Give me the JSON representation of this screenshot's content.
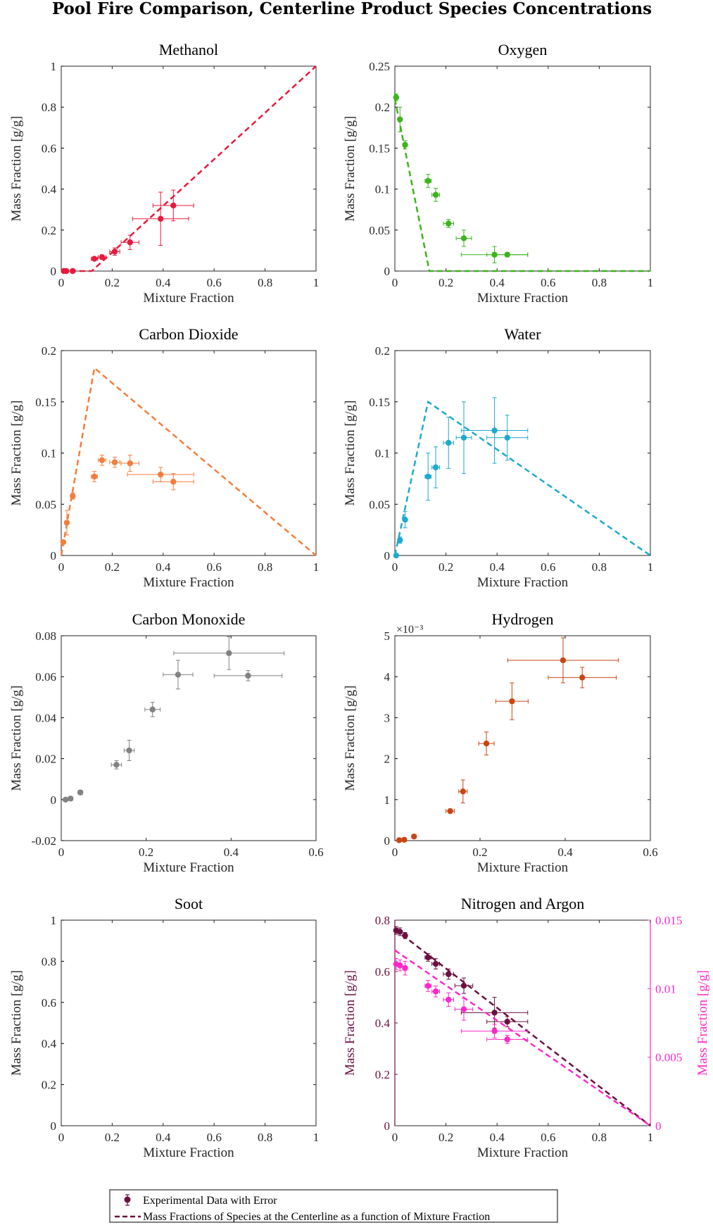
{
  "figure": {
    "title": "Pool Fire Comparison, Centerline Product Species Concentrations"
  },
  "legend": {
    "items": [
      {
        "label": "Experimental Data with Error",
        "kind": "errorbar-marker",
        "color": "#6b1040"
      },
      {
        "label": "Mass Fractions of Species at the Centerline as a function of Mixture Fraction",
        "kind": "dashed-line",
        "color": "#6b1040"
      }
    ]
  },
  "chart_data": [
    {
      "type": "scatter",
      "title": "Methanol",
      "xlabel": "Mixture Fraction",
      "ylabel": "Mass Fraction [g/g]",
      "xlim": [
        0,
        1
      ],
      "ylim": [
        0,
        1
      ],
      "xticks": [
        0,
        0.2,
        0.4,
        0.6,
        0.8,
        1
      ],
      "xtick_labels": [
        "0",
        "0.2",
        "0.4",
        "0.6",
        "0.8",
        "1"
      ],
      "yticks": [
        0,
        0.2,
        0.4,
        0.6,
        0.8,
        1
      ],
      "ytick_labels": [
        "0",
        "0.2",
        "0.4",
        "0.6",
        "0.8",
        "1"
      ],
      "color": "#e8193c",
      "points": [
        {
          "x": 0.01,
          "y": 0.0,
          "xerr": 0.005,
          "yerr": 0.003
        },
        {
          "x": 0.02,
          "y": 0.0,
          "xerr": 0.005,
          "yerr": 0.003
        },
        {
          "x": 0.045,
          "y": 0.0,
          "xerr": 0.008,
          "yerr": 0.003
        },
        {
          "x": 0.13,
          "y": 0.06,
          "xerr": 0.012,
          "yerr": 0.008
        },
        {
          "x": 0.16,
          "y": 0.068,
          "xerr": 0.015,
          "yerr": 0.01
        },
        {
          "x": 0.21,
          "y": 0.095,
          "xerr": 0.02,
          "yerr": 0.018
        },
        {
          "x": 0.27,
          "y": 0.14,
          "xerr": 0.035,
          "yerr": 0.035
        },
        {
          "x": 0.39,
          "y": 0.255,
          "xerr": 0.11,
          "yerr": 0.13
        },
        {
          "x": 0.44,
          "y": 0.32,
          "xerr": 0.08,
          "yerr": 0.075
        }
      ],
      "line": {
        "x": [
          0,
          0.12,
          1
        ],
        "y": [
          0,
          0,
          1
        ]
      }
    },
    {
      "type": "scatter",
      "title": "Oxygen",
      "xlabel": "Mixture Fraction",
      "ylabel": "Mass Fraction [g/g]",
      "xlim": [
        0,
        1
      ],
      "ylim": [
        0,
        0.25
      ],
      "xticks": [
        0,
        0.2,
        0.4,
        0.6,
        0.8,
        1
      ],
      "xtick_labels": [
        "0",
        "0.2",
        "0.4",
        "0.6",
        "0.8",
        "1"
      ],
      "yticks": [
        0,
        0.05,
        0.1,
        0.15,
        0.2,
        0.25
      ],
      "ytick_labels": [
        "0",
        "0.05",
        "0.1",
        "0.15",
        "0.2",
        "0.25"
      ],
      "color": "#3cb41e",
      "points": [
        {
          "x": 0.005,
          "y": 0.212,
          "xerr": 0.003,
          "yerr": 0.004
        },
        {
          "x": 0.02,
          "y": 0.185,
          "xerr": 0.006,
          "yerr": 0.015
        },
        {
          "x": 0.04,
          "y": 0.154,
          "xerr": 0.008,
          "yerr": 0.005
        },
        {
          "x": 0.13,
          "y": 0.11,
          "xerr": 0.012,
          "yerr": 0.008
        },
        {
          "x": 0.16,
          "y": 0.093,
          "xerr": 0.015,
          "yerr": 0.008
        },
        {
          "x": 0.21,
          "y": 0.058,
          "xerr": 0.02,
          "yerr": 0.005
        },
        {
          "x": 0.27,
          "y": 0.04,
          "xerr": 0.03,
          "yerr": 0.01
        },
        {
          "x": 0.39,
          "y": 0.02,
          "xerr": 0.13,
          "yerr": 0.01
        },
        {
          "x": 0.44,
          "y": 0.02,
          "xerr": 0.08,
          "yerr": 0.002
        }
      ],
      "line": {
        "x": [
          0,
          0.135,
          1
        ],
        "y": [
          0.21,
          0,
          0
        ]
      }
    },
    {
      "type": "scatter",
      "title": "Carbon Dioxide",
      "xlabel": "Mixture Fraction",
      "ylabel": "Mass Fraction [g/g]",
      "xlim": [
        0,
        1
      ],
      "ylim": [
        0,
        0.2
      ],
      "xticks": [
        0,
        0.2,
        0.4,
        0.6,
        0.8,
        1
      ],
      "xtick_labels": [
        "0",
        "0.2",
        "0.4",
        "0.6",
        "0.8",
        "1"
      ],
      "yticks": [
        0,
        0.05,
        0.1,
        0.15,
        0.2
      ],
      "ytick_labels": [
        "0",
        "0.05",
        "0.1",
        "0.15",
        "0.2"
      ],
      "color": "#f57d3c",
      "points": [
        {
          "x": 0.008,
          "y": 0.013,
          "xerr": 0.003,
          "yerr": 0.002
        },
        {
          "x": 0.022,
          "y": 0.032,
          "xerr": 0.006,
          "yerr": 0.012
        },
        {
          "x": 0.045,
          "y": 0.058,
          "xerr": 0.008,
          "yerr": 0.003
        },
        {
          "x": 0.13,
          "y": 0.077,
          "xerr": 0.012,
          "yerr": 0.005
        },
        {
          "x": 0.16,
          "y": 0.093,
          "xerr": 0.015,
          "yerr": 0.005
        },
        {
          "x": 0.21,
          "y": 0.091,
          "xerr": 0.02,
          "yerr": 0.005
        },
        {
          "x": 0.27,
          "y": 0.09,
          "xerr": 0.035,
          "yerr": 0.008
        },
        {
          "x": 0.39,
          "y": 0.079,
          "xerr": 0.13,
          "yerr": 0.007
        },
        {
          "x": 0.44,
          "y": 0.072,
          "xerr": 0.08,
          "yerr": 0.008
        }
      ],
      "line": {
        "x": [
          0,
          0.13,
          1
        ],
        "y": [
          0,
          0.183,
          0
        ]
      }
    },
    {
      "type": "scatter",
      "title": "Water",
      "xlabel": "Mixture Fraction",
      "ylabel": "Mass Fraction [g/g]",
      "xlim": [
        0,
        1
      ],
      "ylim": [
        0,
        0.2
      ],
      "xticks": [
        0,
        0.2,
        0.4,
        0.6,
        0.8,
        1
      ],
      "xtick_labels": [
        "0",
        "0.2",
        "0.4",
        "0.6",
        "0.8",
        "1"
      ],
      "yticks": [
        0,
        0.05,
        0.1,
        0.15,
        0.2
      ],
      "ytick_labels": [
        "0",
        "0.05",
        "0.1",
        "0.15",
        "0.2"
      ],
      "color": "#1eaacd",
      "points": [
        {
          "x": 0.005,
          "y": 0.0,
          "xerr": 0.002,
          "yerr": 0.001
        },
        {
          "x": 0.02,
          "y": 0.015,
          "xerr": 0.005,
          "yerr": 0.003
        },
        {
          "x": 0.04,
          "y": 0.035,
          "xerr": 0.007,
          "yerr": 0.008
        },
        {
          "x": 0.13,
          "y": 0.077,
          "xerr": 0.012,
          "yerr": 0.023
        },
        {
          "x": 0.16,
          "y": 0.086,
          "xerr": 0.015,
          "yerr": 0.02
        },
        {
          "x": 0.21,
          "y": 0.11,
          "xerr": 0.02,
          "yerr": 0.025
        },
        {
          "x": 0.27,
          "y": 0.115,
          "xerr": 0.03,
          "yerr": 0.035
        },
        {
          "x": 0.39,
          "y": 0.122,
          "xerr": 0.13,
          "yerr": 0.032
        },
        {
          "x": 0.44,
          "y": 0.115,
          "xerr": 0.08,
          "yerr": 0.022
        }
      ],
      "line": {
        "x": [
          0,
          0.13,
          1
        ],
        "y": [
          0,
          0.15,
          0
        ]
      }
    },
    {
      "type": "scatter",
      "title": "Carbon Monoxide",
      "xlabel": "Mixture Fraction",
      "ylabel": "Mass Fraction [g/g]",
      "xlim": [
        0,
        0.6
      ],
      "ylim": [
        -0.02,
        0.08
      ],
      "xticks": [
        0,
        0.2,
        0.4,
        0.6
      ],
      "xtick_labels": [
        "0",
        "0.2",
        "0.4",
        "0.6"
      ],
      "yticks": [
        -0.02,
        0,
        0.02,
        0.04,
        0.06,
        0.08
      ],
      "ytick_labels": [
        "-0.02",
        "0",
        "0.02",
        "0.04",
        "0.06",
        "0.08"
      ],
      "color": "#828282",
      "points": [
        {
          "x": 0.01,
          "y": 0.0,
          "xerr": 0.003,
          "yerr": 0.0005
        },
        {
          "x": 0.022,
          "y": 0.0005,
          "xerr": 0.005,
          "yerr": 0.0005
        },
        {
          "x": 0.045,
          "y": 0.0035,
          "xerr": 0.005,
          "yerr": 0.001
        },
        {
          "x": 0.13,
          "y": 0.017,
          "xerr": 0.012,
          "yerr": 0.002
        },
        {
          "x": 0.16,
          "y": 0.024,
          "xerr": 0.012,
          "yerr": 0.005
        },
        {
          "x": 0.215,
          "y": 0.044,
          "xerr": 0.018,
          "yerr": 0.0035
        },
        {
          "x": 0.275,
          "y": 0.061,
          "xerr": 0.035,
          "yerr": 0.007
        },
        {
          "x": 0.395,
          "y": 0.0715,
          "xerr": 0.13,
          "yerr": 0.008
        },
        {
          "x": 0.44,
          "y": 0.0605,
          "xerr": 0.08,
          "yerr": 0.0025
        }
      ]
    },
    {
      "type": "scatter",
      "title": "Hydrogen",
      "xlabel": "Mixture Fraction",
      "ylabel": "Mass Fraction [g/g]",
      "xlim": [
        0,
        0.6
      ],
      "ylim": [
        0,
        0.005
      ],
      "xticks": [
        0,
        0.2,
        0.4,
        0.6
      ],
      "xtick_labels": [
        "0",
        "0.2",
        "0.4",
        "0.6"
      ],
      "yticks": [
        0,
        0.001,
        0.002,
        0.003,
        0.004,
        0.005
      ],
      "ytick_labels": [
        "0",
        "1",
        "2",
        "3",
        "4",
        "5"
      ],
      "y_scale_note": "×10⁻³",
      "color": "#c84614",
      "points": [
        {
          "x": 0.01,
          "y": 1e-05,
          "xerr": 0.003,
          "yerr": 2e-05
        },
        {
          "x": 0.022,
          "y": 2e-05,
          "xerr": 0.005,
          "yerr": 2e-05
        },
        {
          "x": 0.045,
          "y": 0.0001,
          "xerr": 0.005,
          "yerr": 3e-05
        },
        {
          "x": 0.13,
          "y": 0.00072,
          "xerr": 0.01,
          "yerr": 5e-05
        },
        {
          "x": 0.16,
          "y": 0.0012,
          "xerr": 0.01,
          "yerr": 0.00028
        },
        {
          "x": 0.215,
          "y": 0.00237,
          "xerr": 0.018,
          "yerr": 0.00028
        },
        {
          "x": 0.275,
          "y": 0.0034,
          "xerr": 0.038,
          "yerr": 0.00045
        },
        {
          "x": 0.395,
          "y": 0.0044,
          "xerr": 0.13,
          "yerr": 0.00055
        },
        {
          "x": 0.44,
          "y": 0.00398,
          "xerr": 0.08,
          "yerr": 0.00025
        }
      ]
    },
    {
      "type": "scatter",
      "title": "Soot",
      "xlabel": "Mixture Fraction",
      "ylabel": "Mass Fraction [g/g]",
      "xlim": [
        0,
        1
      ],
      "ylim": [
        0,
        1
      ],
      "xticks": [
        0,
        0.2,
        0.4,
        0.6,
        0.8,
        1
      ],
      "xtick_labels": [
        "0",
        "0.2",
        "0.4",
        "0.6",
        "0.8",
        "1"
      ],
      "yticks": [
        0,
        0.2,
        0.4,
        0.6,
        0.8,
        1
      ],
      "ytick_labels": [
        "0",
        "0.2",
        "0.4",
        "0.6",
        "0.8",
        "1"
      ],
      "color": "#000000",
      "points": []
    },
    {
      "type": "scatter",
      "title": "Nitrogen and Argon",
      "xlabel": "Mixture Fraction",
      "ylabel": "Mass Fraction [g/g]",
      "ylabel_right": "Mass Fraction [g/g]",
      "xlim": [
        0,
        1
      ],
      "ylim": [
        0,
        0.8
      ],
      "ylim_right": [
        0,
        0.015
      ],
      "xticks": [
        0,
        0.2,
        0.4,
        0.6,
        0.8,
        1
      ],
      "xtick_labels": [
        "0",
        "0.2",
        "0.4",
        "0.6",
        "0.8",
        "1"
      ],
      "yticks": [
        0,
        0.2,
        0.4,
        0.6,
        0.8
      ],
      "ytick_labels": [
        "0",
        "0.2",
        "0.4",
        "0.6",
        "0.8"
      ],
      "yticks_right": [
        0,
        0.005,
        0.01,
        0.015
      ],
      "ytick_labels_right": [
        "0",
        "0.005",
        "0.01",
        "0.015"
      ],
      "left_color": "#6b1040",
      "right_color": "#ff28c8",
      "series": [
        {
          "axis": "left",
          "color": "#6b1040",
          "points": [
            {
              "x": 0.005,
              "y": 0.76,
              "xerr": 0.004,
              "yerr": 0.015
            },
            {
              "x": 0.02,
              "y": 0.755,
              "xerr": 0.006,
              "yerr": 0.015
            },
            {
              "x": 0.04,
              "y": 0.74,
              "xerr": 0.008,
              "yerr": 0.012
            },
            {
              "x": 0.13,
              "y": 0.655,
              "xerr": 0.012,
              "yerr": 0.015
            },
            {
              "x": 0.16,
              "y": 0.63,
              "xerr": 0.015,
              "yerr": 0.02
            },
            {
              "x": 0.21,
              "y": 0.59,
              "xerr": 0.02,
              "yerr": 0.02
            },
            {
              "x": 0.27,
              "y": 0.545,
              "xerr": 0.035,
              "yerr": 0.03
            },
            {
              "x": 0.39,
              "y": 0.44,
              "xerr": 0.13,
              "yerr": 0.06
            },
            {
              "x": 0.44,
              "y": 0.405,
              "xerr": 0.08,
              "yerr": 0.02
            }
          ],
          "line": {
            "x": [
              0,
              1
            ],
            "y": [
              0.765,
              0
            ]
          }
        },
        {
          "axis": "right",
          "color": "#ff28c8",
          "points": [
            {
              "x": 0.005,
              "y": 0.0118,
              "xerr": 0.004,
              "yerr": 0.0004
            },
            {
              "x": 0.02,
              "y": 0.0117,
              "xerr": 0.006,
              "yerr": 0.0004
            },
            {
              "x": 0.04,
              "y": 0.0115,
              "xerr": 0.008,
              "yerr": 0.0005
            },
            {
              "x": 0.13,
              "y": 0.0102,
              "xerr": 0.012,
              "yerr": 0.0004
            },
            {
              "x": 0.16,
              "y": 0.0098,
              "xerr": 0.015,
              "yerr": 0.0004
            },
            {
              "x": 0.21,
              "y": 0.0092,
              "xerr": 0.02,
              "yerr": 0.0005
            },
            {
              "x": 0.27,
              "y": 0.0085,
              "xerr": 0.035,
              "yerr": 0.0008
            },
            {
              "x": 0.39,
              "y": 0.0069,
              "xerr": 0.13,
              "yerr": 0.0005
            },
            {
              "x": 0.44,
              "y": 0.0063,
              "xerr": 0.08,
              "yerr": 0.0003
            }
          ],
          "line": {
            "x": [
              0,
              1
            ],
            "y": [
              0.0128,
              0
            ]
          }
        }
      ]
    }
  ]
}
